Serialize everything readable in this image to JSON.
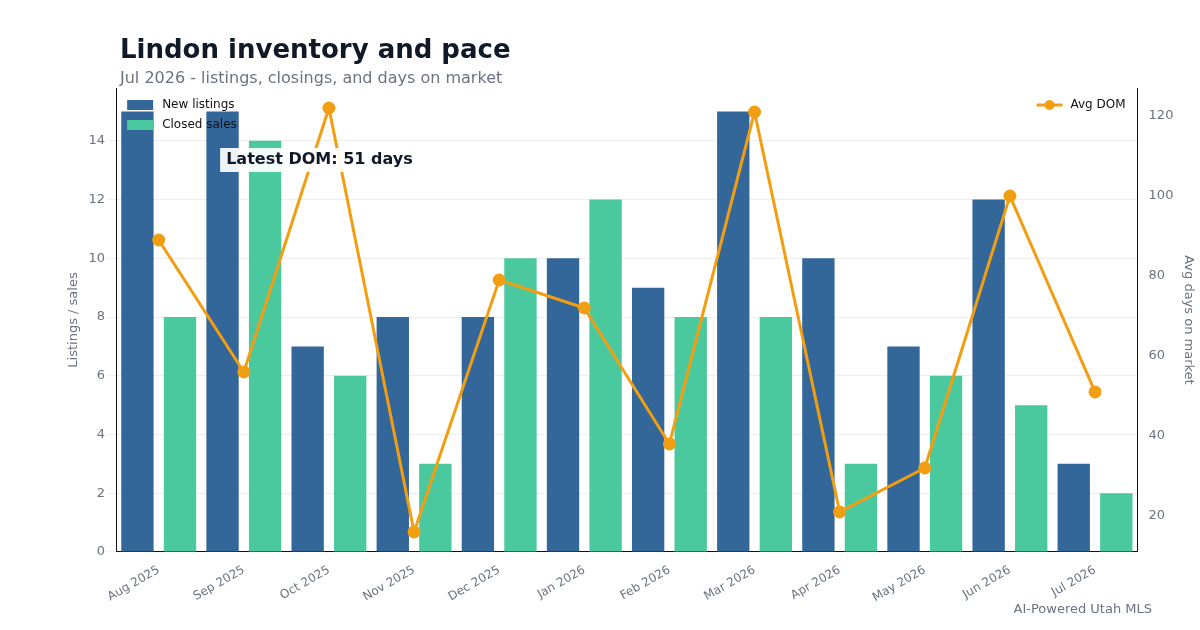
{
  "chart_data": {
    "type": "bar",
    "title": "Lindon inventory and pace",
    "subtitle": "Jul 2026 - listings, closings, and days on market",
    "ylabel": "Listings / sales",
    "y2label": "Avg days on market",
    "categories": [
      "Aug 2025",
      "Sep 2025",
      "Oct 2025",
      "Nov 2025",
      "Dec 2025",
      "Jan 2026",
      "Feb 2026",
      "Mar 2026",
      "Apr 2026",
      "May 2026",
      "Jun 2026",
      "Jul 2026"
    ],
    "series": [
      {
        "name": "New listings",
        "color": "#336699",
        "values": [
          15,
          15,
          7,
          8,
          8,
          10,
          9,
          15,
          10,
          7,
          12,
          3
        ]
      },
      {
        "name": "Closed sales",
        "color": "#4bc99e",
        "values": [
          8,
          14,
          6,
          3,
          10,
          12,
          8,
          8,
          3,
          6,
          5,
          2
        ]
      },
      {
        "name": "Avg DOM",
        "type": "line",
        "axis": "y2",
        "color": "#f29e12",
        "marker": "circle",
        "values": [
          89,
          56,
          122,
          16,
          79,
          72,
          38,
          121,
          21,
          32,
          100,
          51
        ]
      }
    ],
    "ylim": [
      0,
      15.8
    ],
    "yticks": [
      0,
      2,
      4,
      6,
      8,
      10,
      12,
      14
    ],
    "y2lim": [
      11,
      127
    ],
    "y2ticks": [
      20,
      40,
      60,
      80,
      100,
      120
    ],
    "grid": "y",
    "legend": "top",
    "annotations": [
      "Latest DOM: 51 days",
      "AI-Powered Utah MLS"
    ]
  }
}
